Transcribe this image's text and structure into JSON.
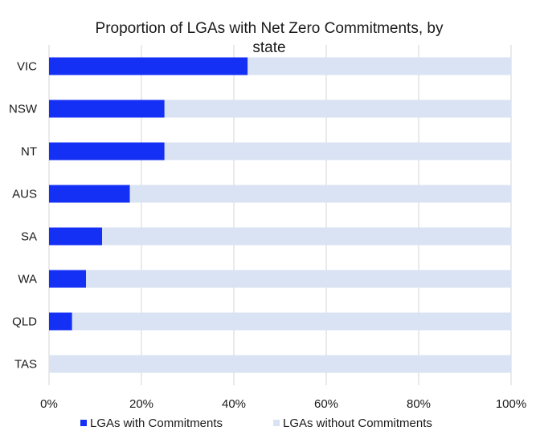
{
  "chart_data": {
    "type": "bar",
    "orientation": "horizontal",
    "stacked": true,
    "title": "Proportion of LGAs with Net Zero Commitments, by state",
    "categories": [
      "VIC",
      "NSW",
      "NT",
      "AUS",
      "SA",
      "WA",
      "QLD",
      "TAS"
    ],
    "series": [
      {
        "name": "LGAs with Commitments",
        "color": "#1530f5",
        "values": [
          43,
          25,
          25,
          17.5,
          11.5,
          8,
          5,
          0
        ]
      },
      {
        "name": "LGAs without Commitments",
        "color": "#dae3f3",
        "values": [
          57,
          75,
          75,
          82.5,
          88.5,
          92,
          95,
          100
        ]
      }
    ],
    "xlim": [
      0,
      100
    ],
    "xticks": [
      0,
      20,
      40,
      60,
      80,
      100
    ],
    "tick_labels": [
      "0%",
      "20%",
      "40%",
      "60%",
      "80%",
      "100%"
    ],
    "grid": "vertical",
    "legend_position": "bottom",
    "xlabel": "",
    "ylabel": ""
  }
}
